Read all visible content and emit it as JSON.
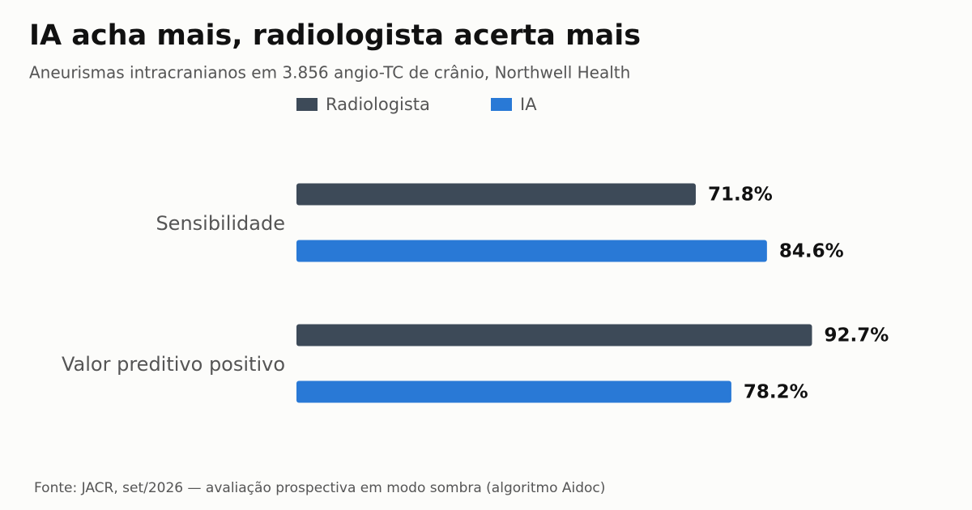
{
  "chart_data": {
    "type": "hbar",
    "title": "IA acha mais, radiologista acerta mais",
    "subtitle": "Aneurismas intracranianos em 3.856 angio-TC de crânio, Northwell Health",
    "categories": [
      "Sensibilidade",
      "Valor preditivo positivo"
    ],
    "series": [
      {
        "name": "Radiologista",
        "color": "#3d4a58",
        "values": [
          71.8,
          92.7
        ],
        "value_labels": [
          "71.8%",
          "92.7%"
        ]
      },
      {
        "name": "IA",
        "color": "#2979d6",
        "values": [
          84.6,
          78.2
        ],
        "value_labels": [
          "84.6%",
          "78.2%"
        ]
      }
    ],
    "xlim": [
      0,
      100
    ],
    "source": "Fonte: JACR, set/2026 — avaliação prospectiva em modo sombra (algoritmo Aidoc)"
  }
}
